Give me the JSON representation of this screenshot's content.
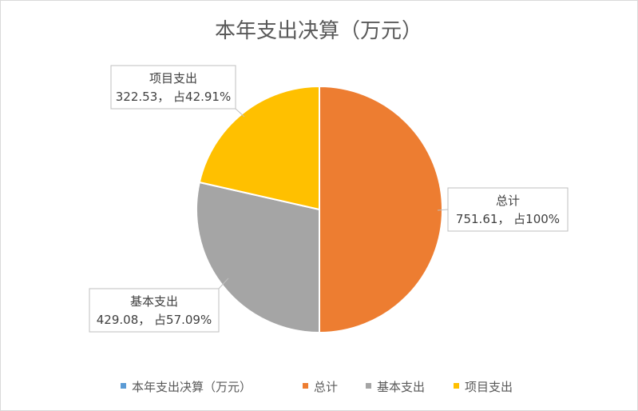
{
  "chart_data": {
    "type": "pie",
    "title": "本年支出决算（万元）",
    "legend_position": "bottom",
    "legend": [
      {
        "label": "本年支出决算（万元）",
        "color": "#5B9BD5"
      },
      {
        "label": "总计",
        "color": "#ED7D31"
      },
      {
        "label": "基本支出",
        "color": "#A5A5A5"
      },
      {
        "label": "项目支出",
        "color": "#FFC000"
      }
    ],
    "slices": [
      {
        "category": "总计",
        "value": 751.61,
        "color": "#ED7D31",
        "label_line1": "总计",
        "label_line2": "751.61， 占100%"
      },
      {
        "category": "基本支出",
        "value": 429.08,
        "color": "#A5A5A5",
        "label_line1": "基本支出",
        "label_line2": "429.08， 占57.09%"
      },
      {
        "category": "项目支出",
        "value": 322.53,
        "color": "#FFC000",
        "label_line1": "项目支出",
        "label_line2": "322.53， 占42.91%"
      }
    ]
  }
}
